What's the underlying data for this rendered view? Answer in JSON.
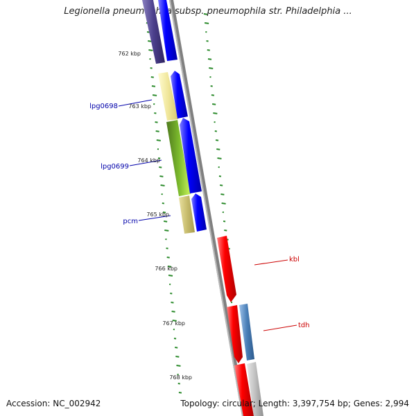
{
  "title": "Legionella pneumophila subsp. pneumophila str. Philadelphia ...",
  "footer": {
    "accession": "Accession: NC_002942",
    "topology": "Topology: circular; Length: 3,397,754 bp; Genes: 2,994"
  },
  "ticks": [
    "762 kbp",
    "763 kbp",
    "764 kbp",
    "765 kbp",
    "766 kbp",
    "767 kbp",
    "768 kbp"
  ],
  "gene_labels": [
    {
      "name": "lpg0698",
      "color": "#0000aa"
    },
    {
      "name": "lpg0699",
      "color": "#0000aa"
    },
    {
      "name": "pcm",
      "color": "#0000aa"
    },
    {
      "name": "kbl",
      "color": "#cc0000"
    },
    {
      "name": "tdh",
      "color": "#cc0000"
    }
  ],
  "colors": {
    "forward_cds": "#0000ff",
    "reverse_cds": "#ff0000",
    "backbone": "#808080",
    "gc_tick": "#2a8a2a",
    "gene_purple": "#4b3f8c",
    "gene_yellow": "#f0e69a",
    "gene_green": "#7ab82c",
    "gene_khaki": "#c8bd6e",
    "gene_steelblue": "#4a7fb8",
    "gene_gray": "#c0c0c0"
  }
}
